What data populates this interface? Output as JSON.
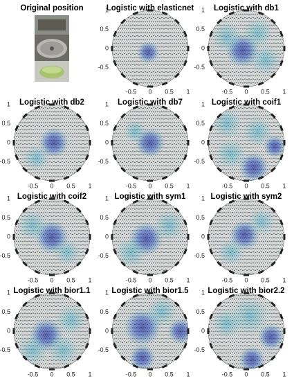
{
  "chart_data": [
    {
      "type": "image",
      "title": "Original position"
    },
    {
      "type": "mesh",
      "title": "Logistic with elasticnet",
      "xlim": [
        -1,
        1
      ],
      "xticks": [
        -0.5,
        0,
        0.5,
        1
      ],
      "ylim": [
        -1,
        1
      ],
      "yticks": [
        1,
        0.5,
        0,
        -0.5
      ]
    },
    {
      "type": "mesh",
      "title": "Logistic with db1",
      "xlim": [
        -1,
        1
      ],
      "xticks": [
        -0.5,
        0,
        0.5,
        1
      ],
      "ylim": [
        -1,
        1
      ],
      "yticks": [
        1,
        0.5,
        0,
        -0.5
      ]
    },
    {
      "type": "mesh",
      "title": "Logistic with db2",
      "xlim": [
        -1,
        1
      ],
      "xticks": [
        -0.5,
        0,
        0.5,
        1
      ],
      "ylim": [
        -1,
        1
      ],
      "yticks": [
        1,
        0.5,
        0,
        -0.5
      ]
    },
    {
      "type": "mesh",
      "title": "Logistic with db7",
      "xlim": [
        -1,
        1
      ],
      "xticks": [
        -0.5,
        0,
        0.5,
        1
      ],
      "ylim": [
        -1,
        1
      ],
      "yticks": [
        1,
        0.5,
        0,
        -0.5
      ]
    },
    {
      "type": "mesh",
      "title": "Logistic with coif1",
      "xlim": [
        -1,
        1
      ],
      "xticks": [
        -0.5,
        0,
        0.5,
        1
      ],
      "ylim": [
        -1,
        1
      ],
      "yticks": [
        1,
        0.5,
        0,
        -0.5
      ]
    },
    {
      "type": "mesh",
      "title": "Logistic with coif2",
      "xlim": [
        -1,
        1
      ],
      "xticks": [
        -0.5,
        0,
        0.5,
        1
      ],
      "ylim": [
        -1,
        1
      ],
      "yticks": [
        1,
        0.5,
        0,
        -0.5
      ]
    },
    {
      "type": "mesh",
      "title": "Logistic with sym1",
      "xlim": [
        -1,
        1
      ],
      "xticks": [
        -0.5,
        0,
        0.5,
        1
      ],
      "ylim": [
        -1,
        1
      ],
      "yticks": [
        1,
        0.5,
        0,
        -0.5
      ]
    },
    {
      "type": "mesh",
      "title": "Logistic with sym2",
      "xlim": [
        -1,
        1
      ],
      "xticks": [
        -0.5,
        0,
        0.5,
        1
      ],
      "ylim": [
        -1,
        1
      ],
      "yticks": [
        1,
        0.5,
        0,
        -0.5
      ]
    },
    {
      "type": "mesh",
      "title": "Logistic with bior1.1",
      "xlim": [
        -1,
        1
      ],
      "xticks": [
        -0.5,
        0,
        0.5,
        1
      ],
      "ylim": [
        -1,
        1
      ],
      "yticks": [
        1,
        0.5,
        0,
        -0.5
      ]
    },
    {
      "type": "mesh",
      "title": "Logistic with bior1.5",
      "xlim": [
        -1,
        1
      ],
      "xticks": [
        -0.5,
        0,
        0.5,
        1
      ],
      "ylim": [
        -1,
        1
      ],
      "yticks": [
        1,
        0.5,
        0,
        -0.5
      ]
    },
    {
      "type": "mesh",
      "title": "Logistic with bior2.2",
      "xlim": [
        -1,
        1
      ],
      "xticks": [
        -0.5,
        0,
        0.5,
        1
      ],
      "ylim": [
        -1,
        1
      ],
      "yticks": [
        1,
        0.5,
        0,
        -0.5
      ]
    }
  ]
}
